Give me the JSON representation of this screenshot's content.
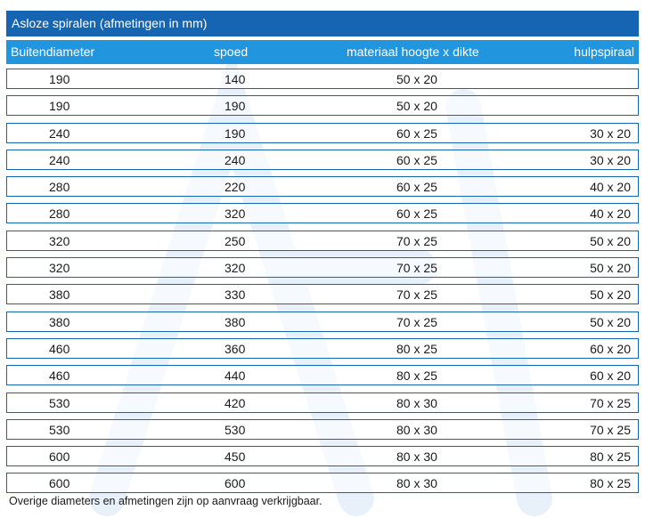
{
  "title": "Asloze spiralen (afmetingen in mm)",
  "table": {
    "headers": [
      "Buitendiameter",
      "spoed",
      "materiaal hoogte x dikte",
      "hulpspiraal"
    ],
    "rows": [
      [
        "190",
        "140",
        "50 x 20",
        ""
      ],
      [
        "190",
        "190",
        "50 x 20",
        ""
      ],
      [
        "240",
        "190",
        "60 x 25",
        "30 x 20"
      ],
      [
        "240",
        "240",
        "60 x 25",
        "30 x 20"
      ],
      [
        "280",
        "220",
        "60 x 25",
        "40 x 20"
      ],
      [
        "280",
        "320",
        "60 x 25",
        "40 x 20"
      ],
      [
        "320",
        "250",
        "70 x 25",
        "50 x 20"
      ],
      [
        "320",
        "320",
        "70 x 25",
        "50 x 20"
      ],
      [
        "380",
        "330",
        "70 x 25",
        "50 x 20"
      ],
      [
        "380",
        "380",
        "70 x 25",
        "50 x 20"
      ],
      [
        "460",
        "360",
        "80 x 25",
        "60 x 20"
      ],
      [
        "460",
        "440",
        "80 x 25",
        "60 x 20"
      ],
      [
        "530",
        "420",
        "80 x 30",
        "70 x 25"
      ],
      [
        "530",
        "530",
        "80 x 30",
        "70 x 25"
      ],
      [
        "600",
        "450",
        "80 x 30",
        "80 x 25"
      ],
      [
        "600",
        "600",
        "80 x 30",
        "80 x 25"
      ]
    ]
  },
  "footnote": "Overige diameters en afmetingen zijn op aanvraag verkrijgbaar.",
  "colors": {
    "title_bg": "#1565b3",
    "header_bg": "#2196de",
    "row_border": "#1565b3"
  }
}
